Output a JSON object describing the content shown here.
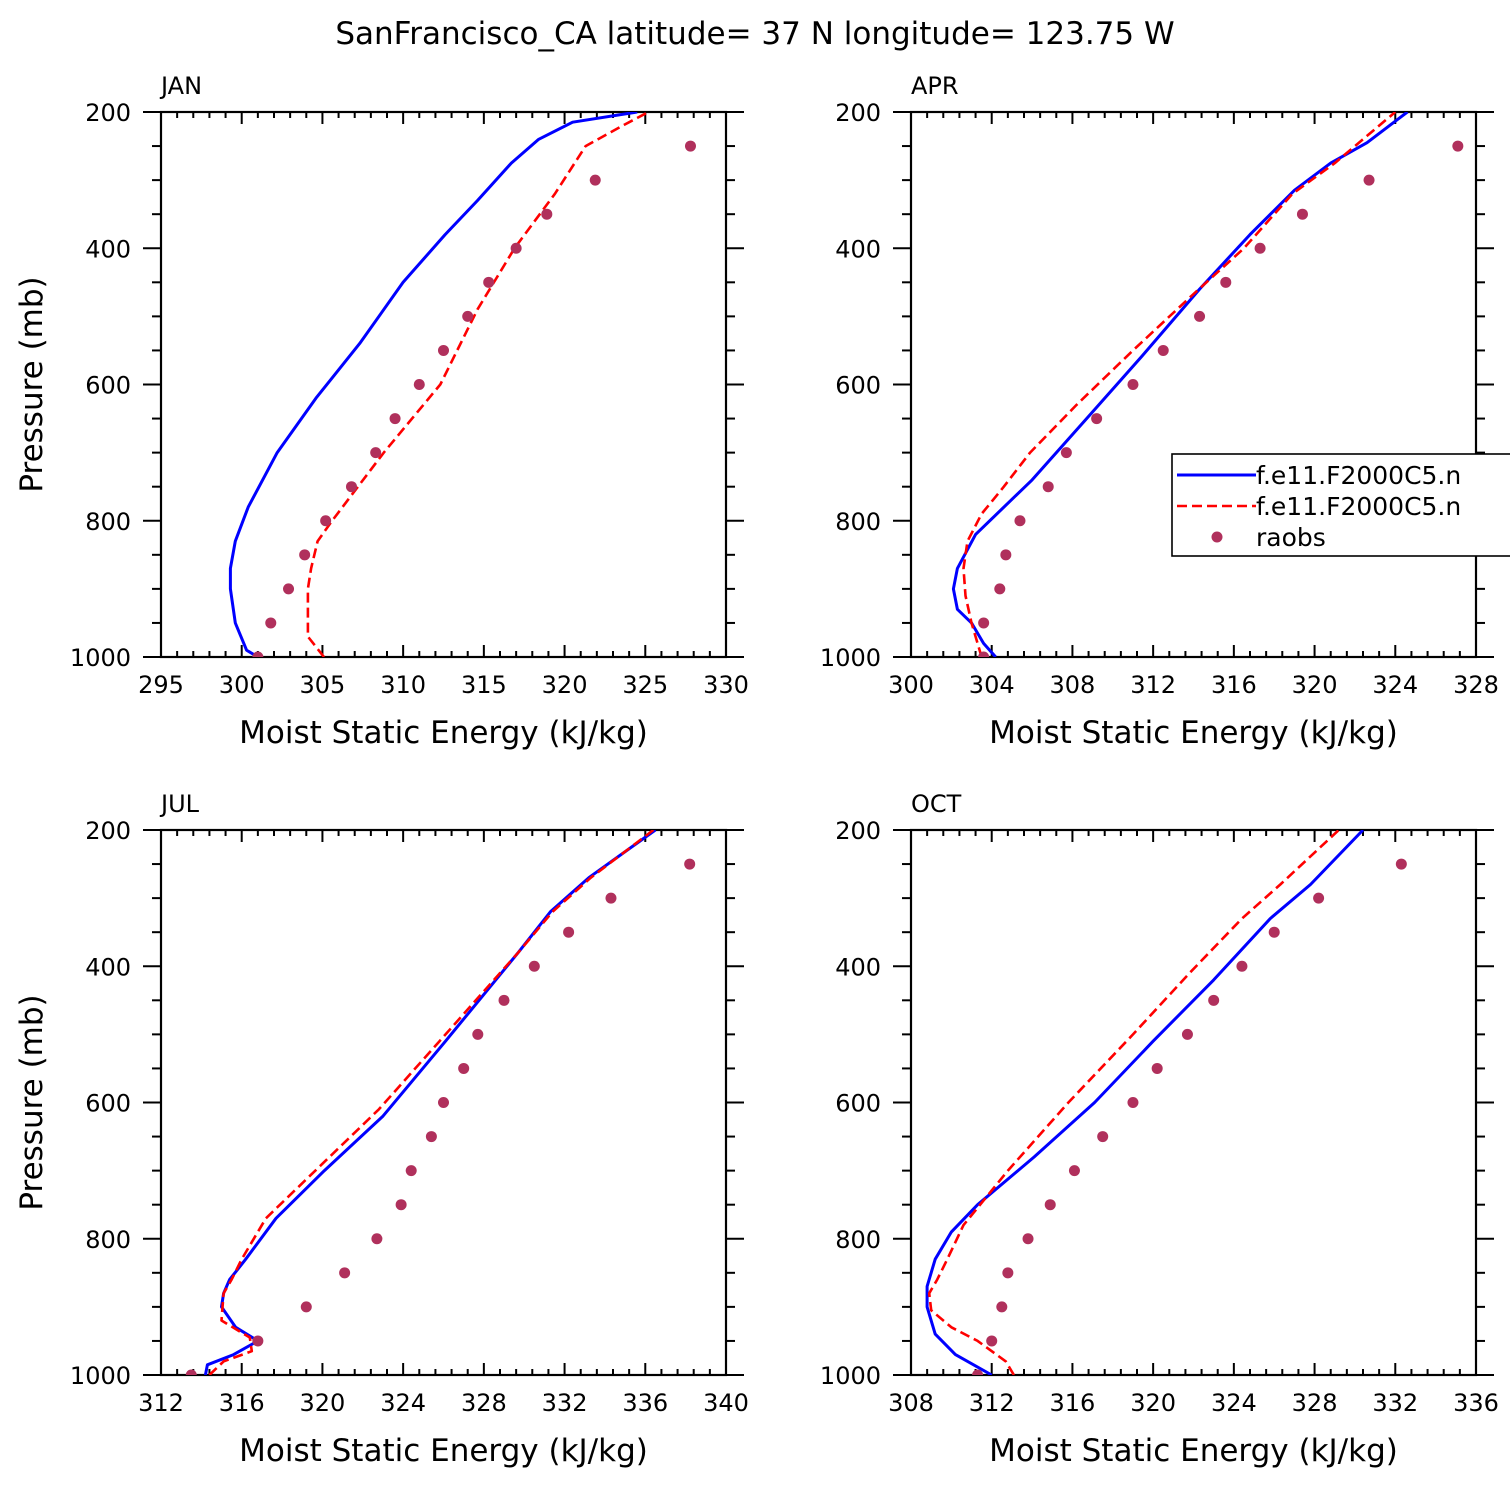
{
  "figure_title": "SanFrancisco_CA  latitude= 37 N longitude= 123.75 W",
  "colors": {
    "model1": "#0000ff",
    "model2": "#ff0000",
    "raobs": "#b0305c",
    "axis": "#000000"
  },
  "legend": {
    "entries": [
      {
        "label": "f.e11.F2000C5.n",
        "style": "solid",
        "color": "#0000ff"
      },
      {
        "label": "f.e11.F2000C5.n",
        "style": "dashed",
        "color": "#ff0000"
      },
      {
        "label": "raobs",
        "style": "dot",
        "color": "#b0305c"
      }
    ]
  },
  "chart_data": [
    {
      "type": "line",
      "panel_label": "JAN",
      "xlabel": "Moist Static Energy (kJ/kg)",
      "ylabel": "Pressure (mb)",
      "xlim": [
        295,
        330
      ],
      "ylim": [
        1000,
        200
      ],
      "xticks": [
        295,
        300,
        305,
        310,
        315,
        320,
        325,
        330
      ],
      "yticks": [
        200,
        400,
        600,
        800,
        1000
      ],
      "series": [
        {
          "name": "f.e11.F2000C5.n",
          "style": "solid",
          "x": [
            301.0,
            300.3,
            299.6,
            299.3,
            299.3,
            299.6,
            300.4,
            302.2,
            304.6,
            307.3,
            310.0,
            312.6,
            314.6,
            316.7,
            318.4,
            320.5,
            324.5
          ],
          "y": [
            1000,
            990,
            950,
            900,
            870,
            830,
            780,
            700,
            620,
            540,
            450,
            380,
            330,
            275,
            240,
            215,
            200
          ]
        },
        {
          "name": "f.e11.F2000C5.n",
          "style": "dashed",
          "x": [
            305.1,
            304.1,
            304.1,
            304.3,
            304.7,
            305.6,
            308.8,
            312.3,
            314.6,
            316.9,
            319.4,
            321.3,
            323.6,
            325.2
          ],
          "y": [
            1000,
            970,
            900,
            870,
            830,
            800,
            700,
            600,
            490,
            400,
            320,
            250,
            220,
            200
          ]
        },
        {
          "name": "raobs",
          "style": "dot",
          "x": [
            301.0,
            301.8,
            302.9,
            303.9,
            305.2,
            306.8,
            308.3,
            309.5,
            311.0,
            312.5,
            314.0,
            315.3,
            317.0,
            318.9,
            321.9,
            327.8
          ],
          "y": [
            1000,
            950,
            900,
            850,
            800,
            750,
            700,
            650,
            600,
            550,
            500,
            450,
            400,
            350,
            300,
            250
          ]
        }
      ]
    },
    {
      "type": "line",
      "panel_label": "APR",
      "xlabel": "Moist Static Energy (kJ/kg)",
      "ylabel": "",
      "xlim": [
        300,
        328
      ],
      "ylim": [
        1000,
        200
      ],
      "xticks": [
        300,
        304,
        308,
        312,
        316,
        320,
        324,
        328
      ],
      "yticks": [
        200,
        400,
        600,
        800,
        1000
      ],
      "series": [
        {
          "name": "f.e11.F2000C5.n",
          "style": "solid",
          "x": [
            304.2,
            303.6,
            303.0,
            302.3,
            302.1,
            302.3,
            303.2,
            306.0,
            308.7,
            311.4,
            314.3,
            316.8,
            319.0,
            320.8,
            322.6,
            324.6
          ],
          "y": [
            1000,
            980,
            950,
            930,
            900,
            870,
            820,
            740,
            650,
            560,
            460,
            380,
            315,
            275,
            245,
            200
          ]
        },
        {
          "name": "f.e11.F2000C5.n",
          "style": "dashed",
          "x": [
            303.5,
            303.3,
            303.0,
            302.7,
            302.6,
            302.8,
            303.5,
            304.6,
            305.9,
            308.2,
            311.0,
            313.9,
            316.5,
            318.9,
            321.0,
            324.0
          ],
          "y": [
            1000,
            980,
            950,
            910,
            870,
            830,
            790,
            750,
            700,
            630,
            550,
            470,
            400,
            320,
            275,
            200
          ]
        },
        {
          "name": "raobs",
          "style": "dot",
          "x": [
            303.6,
            303.6,
            304.4,
            304.7,
            305.4,
            306.8,
            307.7,
            309.2,
            311.0,
            312.5,
            314.3,
            315.6,
            317.3,
            319.4,
            322.7,
            327.1
          ],
          "y": [
            1000,
            950,
            900,
            850,
            800,
            750,
            700,
            650,
            600,
            550,
            500,
            450,
            400,
            350,
            300,
            250
          ]
        }
      ]
    },
    {
      "type": "line",
      "panel_label": "JUL",
      "xlabel": "Moist Static Energy (kJ/kg)",
      "ylabel": "Pressure (mb)",
      "xlim": [
        312,
        340
      ],
      "ylim": [
        1000,
        200
      ],
      "xticks": [
        312,
        316,
        320,
        324,
        328,
        332,
        336,
        340
      ],
      "yticks": [
        200,
        400,
        600,
        800,
        1000
      ],
      "series": [
        {
          "name": "f.e11.F2000C5.n",
          "style": "solid",
          "x": [
            314.2,
            314.3,
            315.6,
            316.8,
            315.7,
            315.0,
            315.1,
            315.4,
            316.2,
            317.7,
            320.1,
            323.0,
            326.1,
            329.7,
            331.3,
            333.2,
            336.5
          ],
          "y": [
            1000,
            985,
            970,
            950,
            930,
            900,
            880,
            860,
            830,
            770,
            700,
            620,
            510,
            380,
            320,
            270,
            200
          ]
        },
        {
          "name": "f.e11.F2000C5.n",
          "style": "dashed",
          "x": [
            314.4,
            315.1,
            316.5,
            316.4,
            315.0,
            315.1,
            315.5,
            316.0,
            317.2,
            319.3,
            322.8,
            325.8,
            329.7,
            331.4,
            333.3,
            336.4
          ],
          "y": [
            1000,
            980,
            965,
            945,
            920,
            880,
            860,
            830,
            770,
            710,
            610,
            510,
            380,
            320,
            270,
            200
          ]
        },
        {
          "name": "raobs",
          "style": "dot",
          "x": [
            313.5,
            316.8,
            319.2,
            321.1,
            322.7,
            323.9,
            324.4,
            325.4,
            326.0,
            327.0,
            327.7,
            329.0,
            330.5,
            332.2,
            334.3,
            338.2
          ],
          "y": [
            1000,
            950,
            900,
            850,
            800,
            750,
            700,
            650,
            600,
            550,
            500,
            450,
            400,
            350,
            300,
            250
          ]
        }
      ]
    },
    {
      "type": "line",
      "panel_label": "OCT",
      "xlabel": "Moist Static Energy (kJ/kg)",
      "ylabel": "",
      "xlim": [
        308,
        336
      ],
      "ylim": [
        1000,
        200
      ],
      "xticks": [
        308,
        312,
        316,
        320,
        324,
        328,
        332,
        336
      ],
      "yticks": [
        200,
        400,
        600,
        800,
        1000
      ],
      "series": [
        {
          "name": "f.e11.F2000C5.n",
          "style": "solid",
          "x": [
            312.0,
            310.2,
            309.2,
            308.8,
            308.8,
            309.2,
            310.0,
            311.3,
            314.1,
            317.1,
            320.0,
            323.0,
            325.8,
            327.8,
            330.4
          ],
          "y": [
            1000,
            970,
            940,
            900,
            870,
            830,
            790,
            750,
            680,
            600,
            510,
            420,
            330,
            280,
            200
          ]
        },
        {
          "name": "f.e11.F2000C5.n",
          "style": "dashed",
          "x": [
            313.1,
            312.7,
            311.3,
            310.0,
            309.0,
            308.9,
            309.3,
            309.8,
            310.6,
            312.8,
            315.8,
            319.0,
            321.8,
            324.4,
            326.3,
            329.2
          ],
          "y": [
            1000,
            980,
            950,
            930,
            905,
            880,
            860,
            830,
            780,
            700,
            600,
            500,
            410,
            330,
            280,
            200
          ]
        },
        {
          "name": "raobs",
          "style": "dot",
          "x": [
            311.3,
            312.0,
            312.5,
            312.8,
            313.8,
            314.9,
            316.1,
            317.5,
            319.0,
            320.2,
            321.7,
            323.0,
            324.4,
            326.0,
            328.2,
            332.3
          ],
          "y": [
            1000,
            950,
            900,
            850,
            800,
            750,
            700,
            650,
            600,
            550,
            500,
            450,
            400,
            350,
            300,
            250
          ]
        }
      ]
    }
  ]
}
